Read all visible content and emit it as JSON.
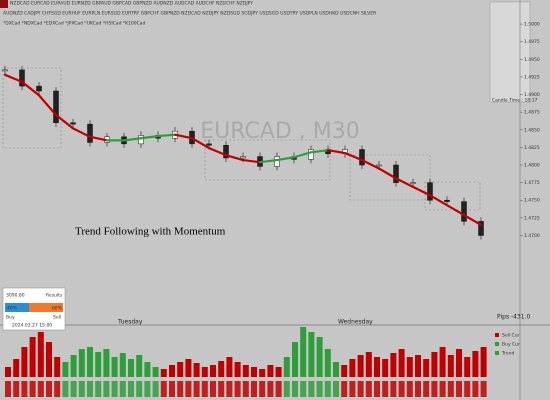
{
  "header": {
    "rows": [
      "NZDCAD EURCAD EURAUD EURNZD GBPAUD GBPCAD GBPNZD AUDNZD AUDCAD AUDCHF NZDCHF NZDJPY",
      "AUDNZD CADJPY CHFSGD EURHUF EURPLN EURSGD EURTRY GBPCHF GBPNZD NZDCAD NZDJPY NZDSGD SGDJPY USDSGD USDTRY USDPLN USDHKD USDCNH SILVER",
      "*DXCad *NDXCad *EDXCad *JPXCad *UKCad *HSICad *K100Cad"
    ]
  },
  "chart_data": {
    "type": "candlestick",
    "watermark": "EURCAD , M30",
    "annotation": "Trend Following with Momentum",
    "day_labels": [
      "Tuesday",
      "Wednesday"
    ],
    "pips": "Pips -431.0",
    "ma": [
      1.4928,
      1.4918,
      1.4899,
      1.4871,
      1.4852,
      1.484,
      1.4835,
      1.4835,
      1.4838,
      1.4841,
      1.4843,
      1.4838,
      1.4824,
      1.4814,
      1.4807,
      1.4804,
      1.4807,
      1.4811,
      1.4818,
      1.4821,
      1.4817,
      1.4807,
      1.4795,
      1.4781,
      1.4769,
      1.4757,
      1.4743,
      1.4729,
      1.4715
    ],
    "closes": [
      1.4935,
      1.4912,
      1.4905,
      1.486,
      1.4858,
      1.4832,
      1.484,
      1.483,
      1.4842,
      1.4838,
      1.4848,
      1.483,
      1.4828,
      1.481,
      1.4812,
      1.4798,
      1.4812,
      1.4808,
      1.4822,
      1.4816,
      1.4822,
      1.48,
      1.48,
      1.4775,
      1.4775,
      1.475,
      1.4748,
      1.472,
      1.47
    ],
    "up_color": "#2e9e3a",
    "down_color": "#c00000",
    "ylim": [
      1.458,
      1.502
    ],
    "yticks": [
      {
        "value": 1.47,
        "label": "1.4700"
      },
      {
        "value": 1.4725,
        "label": "1.4725"
      },
      {
        "value": 1.475,
        "label": "1.4750"
      },
      {
        "value": 1.4775,
        "label": "1.4775"
      },
      {
        "value": 1.48,
        "label": "1.4800"
      },
      {
        "value": 1.4825,
        "label": "1.4825"
      },
      {
        "value": 1.485,
        "label": "1.4850"
      },
      {
        "value": 1.4875,
        "label": "1.4875"
      },
      {
        "value": 1.49,
        "label": "1.4900"
      },
      {
        "value": 1.4925,
        "label": "1.4925"
      },
      {
        "value": 1.495,
        "label": "1.4950"
      },
      {
        "value": 1.4975,
        "label": "1.4975"
      },
      {
        "value": 1.5,
        "label": "1.5000"
      }
    ],
    "histogram": {
      "values": [
        10,
        18,
        30,
        40,
        45,
        35,
        20,
        15,
        22,
        28,
        30,
        25,
        28,
        20,
        24,
        18,
        22,
        15,
        10,
        8,
        12,
        15,
        18,
        14,
        10,
        12,
        16,
        20,
        15,
        12,
        10,
        8,
        12,
        10,
        20,
        35,
        50,
        45,
        40,
        28,
        15,
        12,
        18,
        22,
        25,
        20,
        18,
        24,
        28,
        20,
        22,
        18,
        25,
        30,
        22,
        28,
        20,
        26,
        30
      ],
      "up": [
        false,
        false,
        false,
        false,
        false,
        false,
        false,
        true,
        true,
        true,
        true,
        true,
        true,
        true,
        true,
        true,
        true,
        true,
        true,
        false,
        false,
        false,
        false,
        false,
        false,
        false,
        false,
        false,
        false,
        false,
        false,
        false,
        false,
        false,
        true,
        true,
        true,
        true,
        true,
        true,
        true,
        false,
        false,
        false,
        false,
        false,
        false,
        false,
        false,
        false,
        false,
        false,
        false,
        false,
        false,
        false,
        false,
        false,
        false
      ],
      "legend": [
        "Sell Cur",
        "Buy Cur",
        "Trend"
      ]
    }
  },
  "info_box": {
    "balance": "3090.80",
    "title": "Results",
    "buy_pct": "40%",
    "sell_pct": "60%",
    "buy": "Buy",
    "sell": "Sell",
    "time": "2024.03.27 15:00"
  },
  "side_panel": {
    "candle_time": "Candle Time : 18:17"
  }
}
